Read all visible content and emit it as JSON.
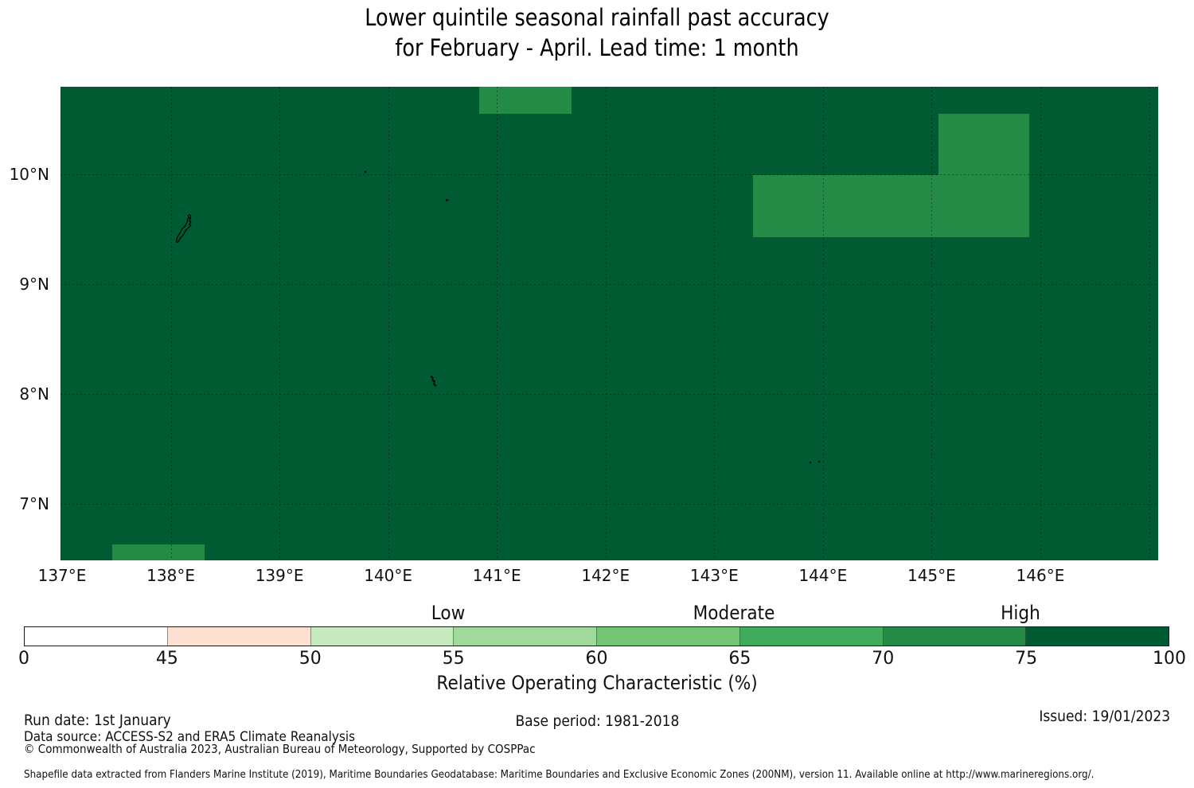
{
  "title": {
    "line1": "Lower quintile seasonal rainfall past accuracy",
    "line2": "for February - April. Lead time: 1 month"
  },
  "map": {
    "lon_ticks": [
      {
        "label": "137°E",
        "value": 137
      },
      {
        "label": "138°E",
        "value": 138
      },
      {
        "label": "139°E",
        "value": 139
      },
      {
        "label": "140°E",
        "value": 140
      },
      {
        "label": "141°E",
        "value": 141
      },
      {
        "label": "142°E",
        "value": 142
      },
      {
        "label": "143°E",
        "value": 143
      },
      {
        "label": "144°E",
        "value": 144
      },
      {
        "label": "145°E",
        "value": 145
      },
      {
        "label": "146°E",
        "value": 146
      }
    ],
    "lat_ticks": [
      {
        "label": "10°N",
        "value": 10
      },
      {
        "label": "9°N",
        "value": 9
      },
      {
        "label": "8°N",
        "value": 8
      },
      {
        "label": "7°N",
        "value": 7
      }
    ],
    "grid_lons": [
      138,
      139,
      140,
      141,
      142,
      143,
      144,
      145,
      146,
      147
    ],
    "grid_lats": [
      10,
      9,
      8,
      7
    ]
  },
  "chart_data": {
    "type": "heatmap",
    "title": "Lower quintile seasonal rainfall past accuracy for February - April. Lead time: 1 month",
    "x_axis": {
      "ticks": [
        137,
        138,
        139,
        140,
        141,
        142,
        143,
        144,
        145,
        146
      ],
      "unit": "°E",
      "range": [
        137,
        147.1
      ]
    },
    "y_axis": {
      "ticks": [
        10,
        9,
        8,
        7
      ],
      "unit": "°N",
      "range": [
        6.49,
        10.8
      ]
    },
    "colorbar_label": "Relative Operating Characteristic (%)",
    "colorbar_bounds": [
      0,
      45,
      50,
      55,
      60,
      65,
      70,
      75,
      100
    ],
    "background": {
      "roc_class": "75-100",
      "color": "#005a32"
    },
    "cells": [
      {
        "lon_min": 140.84,
        "lon_max": 141.69,
        "lat_min": 10.55,
        "lat_max": 11.11,
        "roc_class": "70-75",
        "color": "#238b45"
      },
      {
        "lon_min": 145.06,
        "lon_max": 145.9,
        "lat_min": 9.99,
        "lat_max": 10.55,
        "roc_class": "70-75",
        "color": "#238b45"
      },
      {
        "lon_min": 143.36,
        "lon_max": 144.21,
        "lat_min": 9.43,
        "lat_max": 9.99,
        "roc_class": "70-75",
        "color": "#238b45"
      },
      {
        "lon_min": 144.21,
        "lon_max": 145.06,
        "lat_min": 9.43,
        "lat_max": 9.99,
        "roc_class": "70-75",
        "color": "#238b45"
      },
      {
        "lon_min": 145.06,
        "lon_max": 145.9,
        "lat_min": 9.43,
        "lat_max": 9.99,
        "roc_class": "70-75",
        "color": "#238b45"
      },
      {
        "lon_min": 137.46,
        "lon_max": 138.31,
        "lat_min": 6.07,
        "lat_max": 6.63,
        "roc_class": "70-75",
        "color": "#238b45"
      }
    ]
  },
  "colorbar": {
    "ticks": [
      "0",
      "45",
      "50",
      "55",
      "60",
      "65",
      "70",
      "75",
      "100"
    ],
    "segments": [
      {
        "range": "0-45",
        "color": "#ffffff"
      },
      {
        "range": "45-50",
        "color": "#fde0d2"
      },
      {
        "range": "50-55",
        "color": "#c7e9c0"
      },
      {
        "range": "55-60",
        "color": "#a1d99b"
      },
      {
        "range": "60-65",
        "color": "#74c476"
      },
      {
        "range": "65-70",
        "color": "#41ab5d"
      },
      {
        "range": "70-75",
        "color": "#238b45"
      },
      {
        "range": "75-100",
        "color": "#005a32"
      }
    ],
    "category_labels": [
      {
        "label": "Low",
        "anchor_tick": "55"
      },
      {
        "label": "Moderate",
        "anchor_tick": "65"
      },
      {
        "label": "High",
        "anchor_tick": "75"
      }
    ],
    "axis_label": "Relative Operating Characteristic (%)"
  },
  "footer": {
    "run_date": "Run date: 1st January",
    "base_period": "Base period: 1981-2018",
    "issued": "Issued: 19/01/2023",
    "data_source": "Data source: ACCESS-S2 and ERA5 Climate Reanalysis",
    "copyright": "© Commonwealth of Australia 2023, Australian Bureau of Meteorology, Supported by COSPPac",
    "shapefile_note": "Shapefile data extracted from Flanders Marine Institute (2019), Maritime Boundaries Geodatabase: Maritime Boundaries and Exclusive Economic Zones (200NM), version 11. Available online at http://www.marineregions.org/."
  }
}
